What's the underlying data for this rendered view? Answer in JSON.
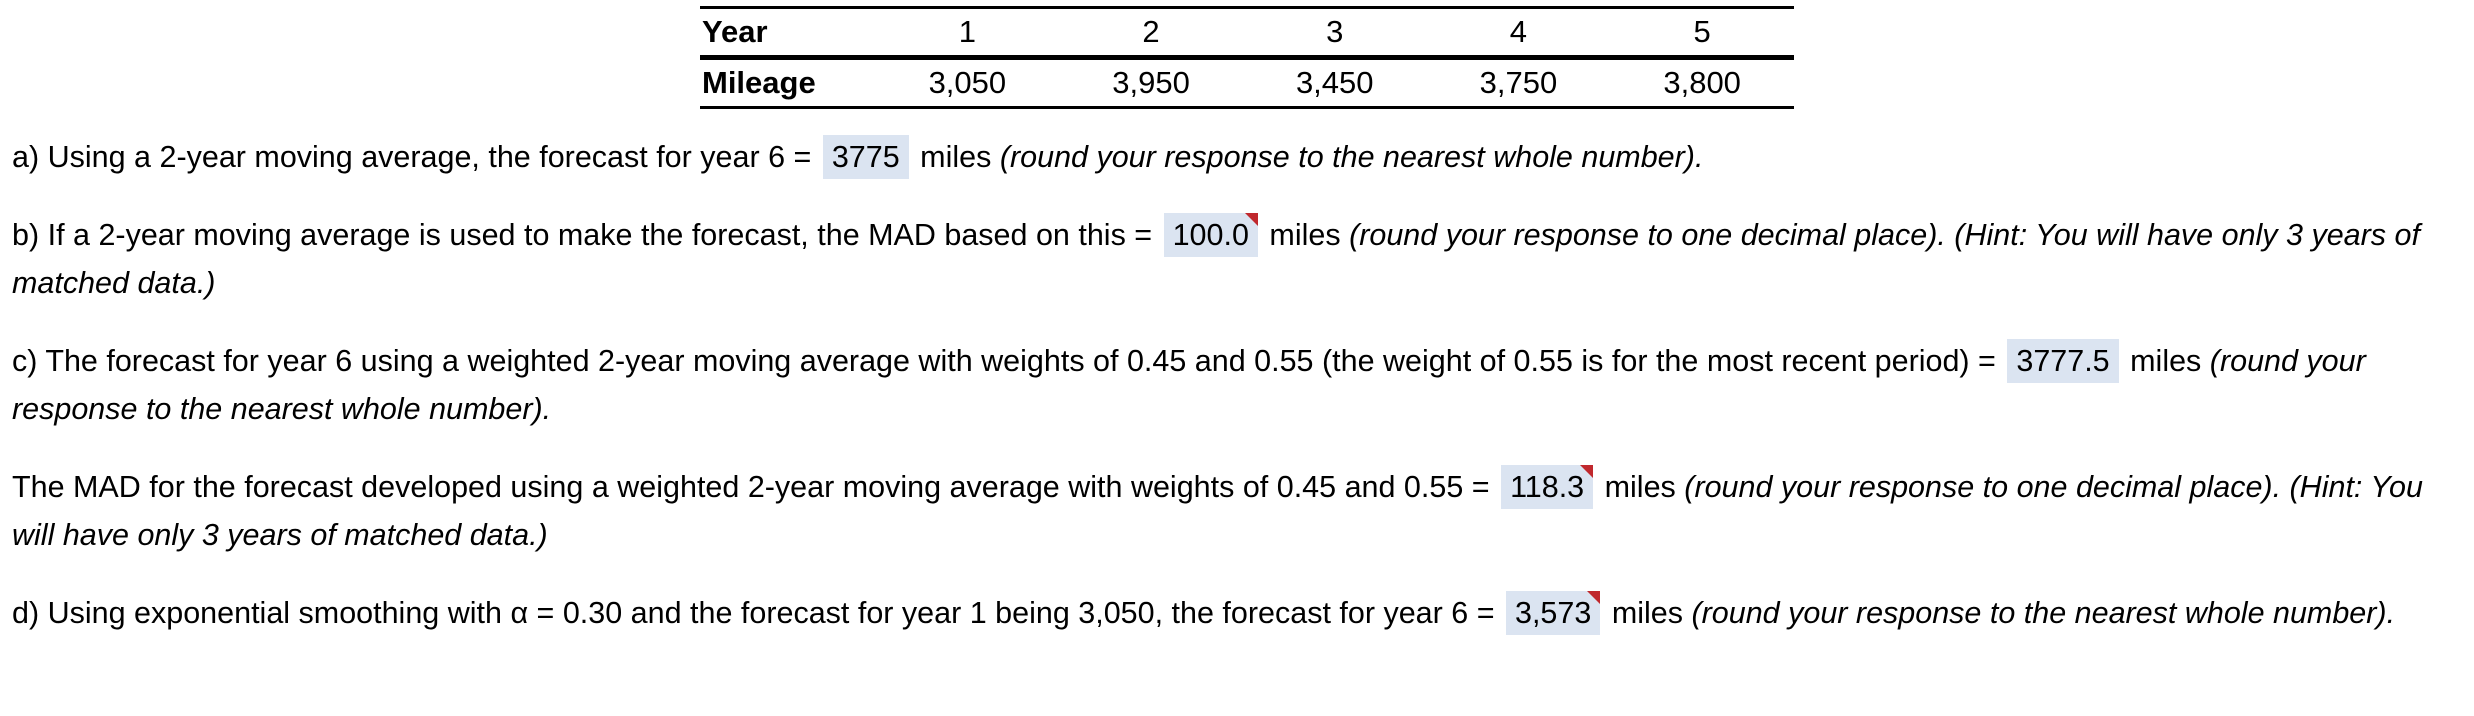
{
  "table": {
    "rows": [
      {
        "header": "Year",
        "values": [
          "1",
          "2",
          "3",
          "4",
          "5"
        ]
      },
      {
        "header": "Mileage",
        "values": [
          "3,050",
          "3,950",
          "3,450",
          "3,750",
          "3,800"
        ]
      }
    ]
  },
  "questions": {
    "a": {
      "prefix": "a) Using a 2-year moving average, the forecast for year 6 =",
      "answer": "3775",
      "unit": "miles",
      "instruction": "(round your response to the nearest whole number)."
    },
    "b": {
      "prefix": "b) If a 2-year moving average is used to make the forecast, the MAD based on this =",
      "answer": "100.0",
      "unit": "miles",
      "instruction": "(round your response to one decimal place).  (Hint: You will have only 3 years of matched data.)"
    },
    "c": {
      "prefix": "c) The forecast for year 6 using a weighted 2-year moving average with weights of 0.45 and 0.55 (the weight of 0.55 is for the most recent period) =",
      "answer": "3777.5",
      "unit": "miles",
      "instruction": "(round your response to the nearest whole number)."
    },
    "c_mad": {
      "prefix": "The MAD for the forecast developed using a weighted 2-year moving average with weights of 0.45 and 0.55 =",
      "answer": "118.3",
      "unit": "miles",
      "instruction": "(round your response to one decimal place). (Hint: You will have only 3 years of matched data.)"
    },
    "d": {
      "prefix": "d) Using exponential smoothing with α = 0.30 and the forecast for year 1 being 3,050, the forecast for year 6 =",
      "answer": "3,573",
      "unit": "miles",
      "instruction": "(round your response to the nearest whole number)."
    }
  },
  "colors": {
    "answer_background": "#dbe4f1",
    "incorrect_flag": "#c0282d"
  }
}
